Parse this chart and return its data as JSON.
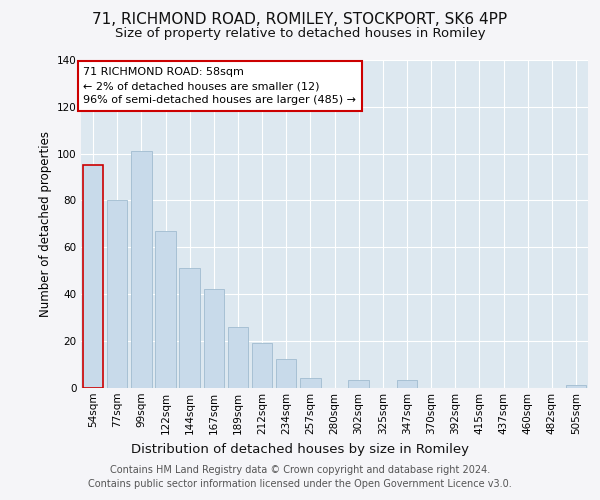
{
  "title1": "71, RICHMOND ROAD, ROMILEY, STOCKPORT, SK6 4PP",
  "title2": "Size of property relative to detached houses in Romiley",
  "xlabel": "Distribution of detached houses by size in Romiley",
  "ylabel": "Number of detached properties",
  "categories": [
    "54sqm",
    "77sqm",
    "99sqm",
    "122sqm",
    "144sqm",
    "167sqm",
    "189sqm",
    "212sqm",
    "234sqm",
    "257sqm",
    "280sqm",
    "302sqm",
    "325sqm",
    "347sqm",
    "370sqm",
    "392sqm",
    "415sqm",
    "437sqm",
    "460sqm",
    "482sqm",
    "505sqm"
  ],
  "values": [
    95,
    80,
    101,
    67,
    51,
    42,
    26,
    19,
    12,
    4,
    0,
    3,
    0,
    3,
    0,
    0,
    0,
    0,
    0,
    0,
    1
  ],
  "bar_color": "#c8daea",
  "bar_edge_color": "#a0bcd0",
  "annotation_lines": [
    "71 RICHMOND ROAD: 58sqm",
    "← 2% of detached houses are smaller (12)",
    "96% of semi-detached houses are larger (485) →"
  ],
  "annotation_box_facecolor": "#ffffff",
  "annotation_box_edgecolor": "#cc0000",
  "ylim": [
    0,
    140
  ],
  "yticks": [
    0,
    20,
    40,
    60,
    80,
    100,
    120,
    140
  ],
  "fig_bg_color": "#f5f5f8",
  "plot_bg_color": "#dde8f0",
  "grid_color": "#ffffff",
  "footer_line1": "Contains HM Land Registry data © Crown copyright and database right 2024.",
  "footer_line2": "Contains public sector information licensed under the Open Government Licence v3.0.",
  "title1_fontsize": 11,
  "title2_fontsize": 9.5,
  "xlabel_fontsize": 9.5,
  "ylabel_fontsize": 8.5,
  "tick_fontsize": 7.5,
  "annotation_fontsize": 8,
  "footer_fontsize": 7
}
